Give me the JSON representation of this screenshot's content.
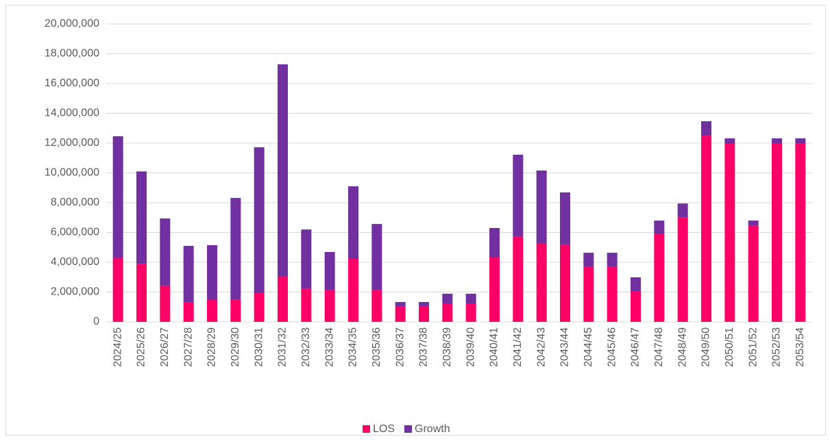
{
  "chart_data": {
    "type": "stacked_bar",
    "categories": [
      "2024/25",
      "2025/26",
      "2026/27",
      "2027/28",
      "2028/29",
      "2029/30",
      "2030/31",
      "2031/32",
      "2032/33",
      "2033/34",
      "2034/35",
      "2035/36",
      "2036/37",
      "2037/38",
      "2038/39",
      "2039/40",
      "2040/41",
      "2041/42",
      "2042/43",
      "2043/44",
      "2044/45",
      "2045/46",
      "2046/47",
      "2047/48",
      "2048/49",
      "2049/50",
      "2050/51",
      "2051/52",
      "2052/53",
      "2053/54"
    ],
    "series": [
      {
        "name": "LOS",
        "color": "#ff0066",
        "values": [
          4300000,
          3900000,
          2440000,
          1330000,
          1470000,
          1500000,
          1930000,
          3030000,
          2250000,
          2160000,
          4230000,
          2160000,
          1060000,
          1060000,
          1240000,
          1240000,
          4320000,
          5750000,
          5290000,
          5200000,
          3720000,
          3720000,
          2070000,
          5930000,
          7030000,
          12500000,
          12000000,
          6480000,
          12000000,
          12000000
        ]
      },
      {
        "name": "Growth",
        "color": "#7030a0",
        "values": [
          8160000,
          6200000,
          4500000,
          3770000,
          3680000,
          6820000,
          9790000,
          14260000,
          3950000,
          2530000,
          4870000,
          4410000,
          270000,
          270000,
          650000,
          650000,
          1980000,
          5470000,
          4870000,
          3490000,
          920000,
          920000,
          920000,
          870000,
          920000,
          970000,
          320000,
          320000,
          320000,
          320000
        ]
      }
    ],
    "ylim": [
      0,
      20000000
    ],
    "yticks": [
      0,
      {
        "value": 2000000,
        "label": "2,000,000"
      },
      {
        "value": 4000000,
        "label": "4,000,000"
      },
      {
        "value": 6000000,
        "label": "6,000,000"
      },
      {
        "value": 8000000,
        "label": "8,000,000"
      },
      {
        "value": 10000000,
        "label": "10,000,000"
      },
      {
        "value": 12000000,
        "label": "12,000,000"
      },
      {
        "value": 14000000,
        "label": "14,000,000"
      },
      {
        "value": 16000000,
        "label": "16,000,000"
      },
      {
        "value": 18000000,
        "label": "18,000,000"
      },
      {
        "value": 20000000,
        "label": "20,000,000"
      }
    ],
    "grid": true,
    "legend": "bottom"
  }
}
